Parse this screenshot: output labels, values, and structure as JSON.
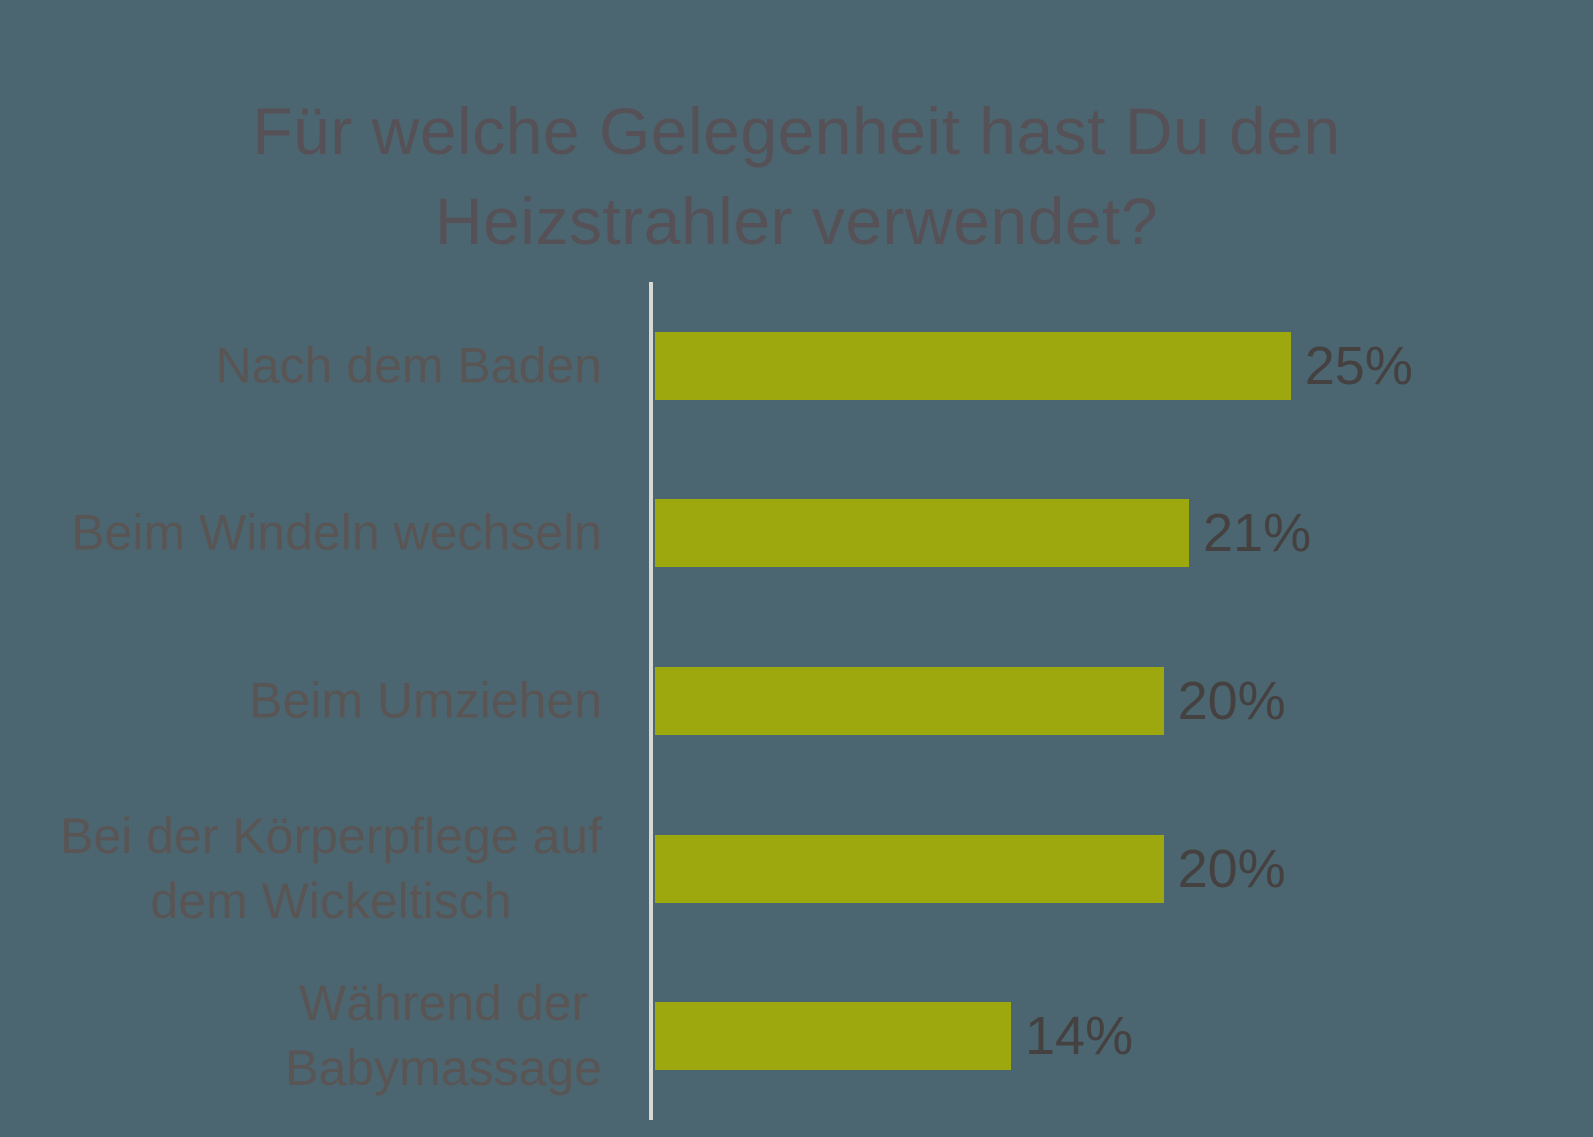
{
  "chart_data": {
    "type": "bar",
    "orientation": "horizontal",
    "title": "Für welche Gelegenheit hast Du den Heizstrahler verwendet?",
    "title_lines": [
      "Für welche Gelegenheit hast Du den",
      "Heizstrahler verwendet?"
    ],
    "categories": [
      "Nach dem Baden",
      "Beim Windeln wechseln",
      "Beim Umziehen",
      "Bei der Körperpflege auf dem Wickeltisch",
      "Während der Babymassage"
    ],
    "categories_lines": [
      [
        "Nach dem Baden"
      ],
      [
        "Beim Windeln wechseln"
      ],
      [
        "Beim Umziehen"
      ],
      [
        "Bei der Körperpflege auf",
        "dem Wickeltisch"
      ],
      [
        "Während der",
        "Babymassage"
      ]
    ],
    "values": [
      25,
      21,
      20,
      20,
      14
    ],
    "value_labels": [
      "25%",
      "21%",
      "20%",
      "20%",
      "14%"
    ],
    "unit": "%",
    "xlabel": "",
    "ylabel": "",
    "grid": false,
    "legend": "none",
    "colors": {
      "bar": "#9da70e",
      "background": "#4b6670",
      "axis_line": "#d7dad3",
      "title_text": "#565156",
      "category_text": "#5a5555",
      "value_text": "#454140"
    }
  }
}
